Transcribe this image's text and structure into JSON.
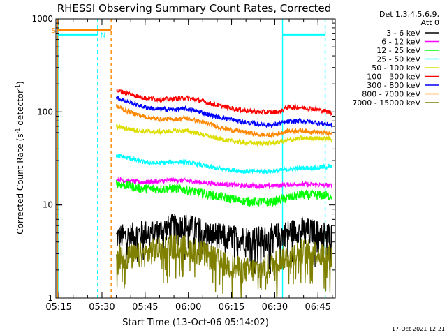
{
  "chart_data": {
    "type": "line",
    "title": "RHESSI Observing Summary Count Rates, Corrected",
    "xlabel": "Start Time (13-Oct-06 05:14:02)",
    "ylabel_main": "Corrected Count Rate (s",
    "ylabel_sup1": "-1",
    "ylabel_mid": " detector",
    "ylabel_sup2": "-1",
    "ylabel_end": ")",
    "y_scale": "log",
    "ylim": [
      1,
      1000
    ],
    "y_ticks": [
      {
        "value": 1,
        "label": "1"
      },
      {
        "value": 10,
        "label": "10"
      },
      {
        "value": 100,
        "label": "100"
      },
      {
        "value": 1000,
        "label": "1000"
      }
    ],
    "xlim_minutes": [
      0,
      97
    ],
    "x_ticks": [
      {
        "minute": 1,
        "label": "05:15"
      },
      {
        "minute": 16,
        "label": "05:30"
      },
      {
        "minute": 31,
        "label": "05:45"
      },
      {
        "minute": 46,
        "label": "06:00"
      },
      {
        "minute": 61,
        "label": "06:15"
      },
      {
        "minute": 76,
        "label": "06:30"
      },
      {
        "minute": 91,
        "label": "06:45"
      }
    ],
    "legend_header": [
      "Det 1,3,4,5,6,9,",
      "Att 0"
    ],
    "legend_position": "right",
    "series": [
      {
        "name": "3 - 6 keV",
        "color": "#000000",
        "points": [
          [
            21,
            4.5
          ],
          [
            25,
            4.6
          ],
          [
            30,
            5.0
          ],
          [
            35,
            5.2
          ],
          [
            40,
            5.8
          ],
          [
            45,
            6.0
          ],
          [
            48,
            5.6
          ],
          [
            52,
            5.0
          ],
          [
            58,
            4.6
          ],
          [
            64,
            4.4
          ],
          [
            70,
            4.3
          ],
          [
            74,
            4.4
          ],
          [
            78,
            4.8
          ],
          [
            82,
            5.2
          ],
          [
            86,
            5.4
          ],
          [
            92,
            5.0
          ],
          [
            96,
            4.7
          ]
        ]
      },
      {
        "name": "6 - 12 keV",
        "color": "#ff00ff",
        "points": [
          [
            21,
            19
          ],
          [
            25,
            18
          ],
          [
            30,
            17.5
          ],
          [
            35,
            17.8
          ],
          [
            40,
            18.5
          ],
          [
            45,
            18.2
          ],
          [
            50,
            17.5
          ],
          [
            55,
            17.0
          ],
          [
            60,
            16.5
          ],
          [
            65,
            16.2
          ],
          [
            70,
            16.0
          ],
          [
            75,
            16.0
          ],
          [
            80,
            16.5
          ],
          [
            85,
            16.8
          ],
          [
            90,
            16.5
          ],
          [
            96,
            16.2
          ]
        ]
      },
      {
        "name": "12 - 25 keV",
        "color": "#00ff00",
        "points": [
          [
            21,
            17
          ],
          [
            25,
            16
          ],
          [
            30,
            15.0
          ],
          [
            35,
            14.8
          ],
          [
            40,
            15.2
          ],
          [
            45,
            14.5
          ],
          [
            50,
            13.5
          ],
          [
            55,
            12.5
          ],
          [
            60,
            11.8
          ],
          [
            65,
            11.0
          ],
          [
            70,
            10.8
          ],
          [
            75,
            10.8
          ],
          [
            80,
            11.8
          ],
          [
            85,
            12.8
          ],
          [
            90,
            12.8
          ],
          [
            96,
            12.5
          ]
        ]
      },
      {
        "name": "25 - 50 keV",
        "color": "#00ffff",
        "points": [
          [
            21,
            34
          ],
          [
            25,
            32
          ],
          [
            30,
            29
          ],
          [
            35,
            28
          ],
          [
            40,
            29
          ],
          [
            45,
            29
          ],
          [
            50,
            27
          ],
          [
            55,
            25
          ],
          [
            60,
            24
          ],
          [
            65,
            23
          ],
          [
            70,
            23
          ],
          [
            75,
            23
          ],
          [
            80,
            24
          ],
          [
            85,
            25
          ],
          [
            90,
            25
          ],
          [
            96,
            26
          ]
        ]
      },
      {
        "name": "50 - 100 keV",
        "color": "#dddd00",
        "points": [
          [
            21,
            70
          ],
          [
            25,
            66
          ],
          [
            30,
            62
          ],
          [
            35,
            61
          ],
          [
            40,
            62
          ],
          [
            45,
            63
          ],
          [
            50,
            58
          ],
          [
            55,
            53
          ],
          [
            60,
            49
          ],
          [
            65,
            47
          ],
          [
            70,
            46
          ],
          [
            75,
            46
          ],
          [
            80,
            49
          ],
          [
            85,
            52
          ],
          [
            90,
            52
          ],
          [
            96,
            51
          ]
        ]
      },
      {
        "name": "100 - 300 keV",
        "color": "#ff0000",
        "points": [
          [
            21,
            170
          ],
          [
            25,
            158
          ],
          [
            30,
            143
          ],
          [
            35,
            137
          ],
          [
            40,
            137
          ],
          [
            45,
            142
          ],
          [
            50,
            133
          ],
          [
            55,
            120
          ],
          [
            60,
            111
          ],
          [
            65,
            104
          ],
          [
            70,
            100
          ],
          [
            75,
            99
          ],
          [
            78,
            101
          ],
          [
            80,
            112
          ],
          [
            85,
            112
          ],
          [
            90,
            107
          ],
          [
            96,
            98
          ]
        ]
      },
      {
        "name": "300 - 800 keV",
        "color": "#0000ff",
        "points": [
          [
            21,
            142
          ],
          [
            25,
            128
          ],
          [
            30,
            114
          ],
          [
            35,
            107
          ],
          [
            40,
            106
          ],
          [
            45,
            108
          ],
          [
            50,
            100
          ],
          [
            55,
            90
          ],
          [
            60,
            84
          ],
          [
            65,
            78
          ],
          [
            70,
            74
          ],
          [
            75,
            72
          ],
          [
            80,
            78
          ],
          [
            85,
            80
          ],
          [
            90,
            77
          ],
          [
            96,
            72
          ]
        ]
      },
      {
        "name": "800 - 7000 keV",
        "color": "#ff8800",
        "points": [
          [
            21,
            115
          ],
          [
            25,
            101
          ],
          [
            30,
            90
          ],
          [
            35,
            84
          ],
          [
            40,
            83
          ],
          [
            45,
            86
          ],
          [
            50,
            79
          ],
          [
            55,
            71
          ],
          [
            60,
            65
          ],
          [
            65,
            61
          ],
          [
            70,
            57
          ],
          [
            75,
            56
          ],
          [
            80,
            62
          ],
          [
            85,
            63
          ],
          [
            90,
            61
          ],
          [
            96,
            58
          ]
        ]
      },
      {
        "name": "7000 - 15000 keV",
        "color": "#808000",
        "points": [
          [
            21,
            2.8
          ],
          [
            25,
            2.7
          ],
          [
            30,
            2.9
          ],
          [
            35,
            3.3
          ],
          [
            40,
            3.6
          ],
          [
            45,
            3.5
          ],
          [
            50,
            3.1
          ],
          [
            55,
            2.6
          ],
          [
            60,
            2.2
          ],
          [
            65,
            2.0
          ],
          [
            70,
            2.0
          ],
          [
            74,
            2.2
          ],
          [
            78,
            2.6
          ],
          [
            82,
            3.0
          ],
          [
            86,
            3.2
          ],
          [
            92,
            3.0
          ],
          [
            96,
            2.7
          ]
        ]
      }
    ],
    "segments": [
      {
        "label": "S",
        "color": "#ff8800",
        "x0": 0.6,
        "x1": 19.2,
        "y": 760
      },
      {
        "label": "N",
        "color": "#00ffff",
        "x0": 0.6,
        "x1": 14.5,
        "y": 680
      },
      {
        "label": "",
        "color": "#00ffff",
        "x0": 78.7,
        "x1": 93.5,
        "y": 680
      }
    ],
    "vertical_markers": [
      {
        "minute": 0.6,
        "color": "#ff8800",
        "style": "solid"
      },
      {
        "minute": 1.0,
        "color": "#00ffff",
        "style": "solid"
      },
      {
        "minute": 14.5,
        "color": "#00ffff",
        "style": "dashed"
      },
      {
        "minute": 19.2,
        "color": "#ff8800",
        "style": "dashed"
      },
      {
        "minute": 78.7,
        "color": "#00ffff",
        "style": "solid"
      },
      {
        "minute": 93.5,
        "color": "#00ffff",
        "style": "dashed"
      }
    ],
    "timestamp": "17-Oct-2021 12:21"
  }
}
